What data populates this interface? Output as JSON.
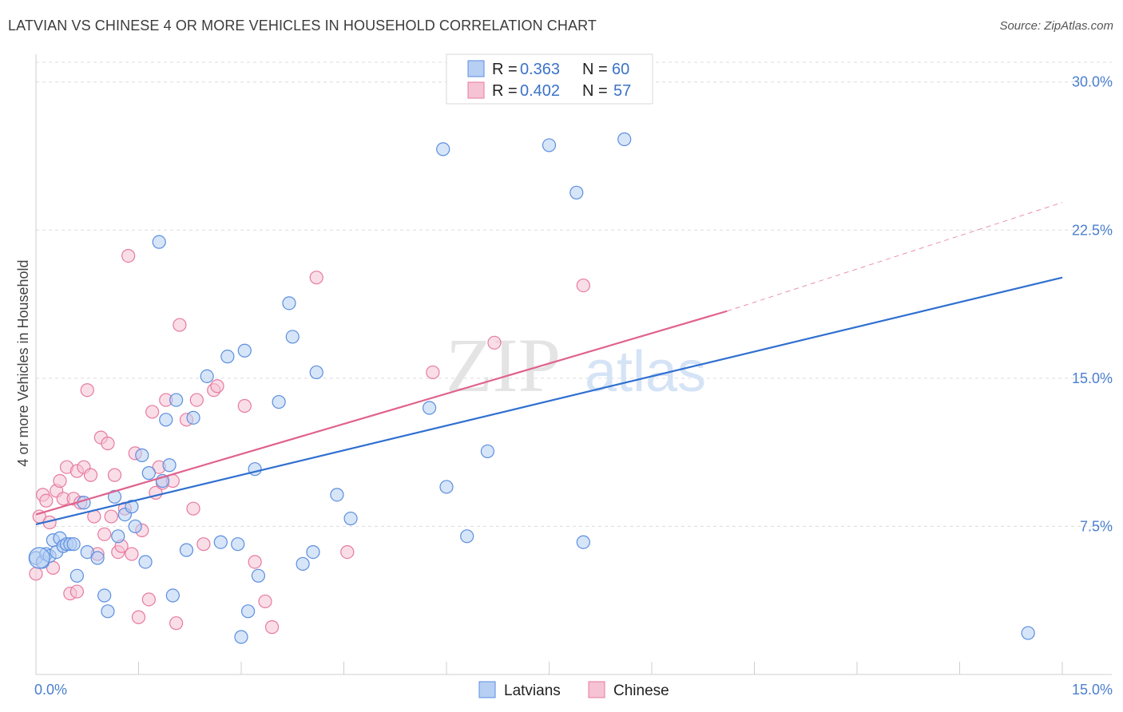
{
  "title": "LATVIAN VS CHINESE 4 OR MORE VEHICLES IN HOUSEHOLD CORRELATION CHART",
  "source": "Source: ZipAtlas.com",
  "watermark": {
    "zip": "ZIP",
    "atlas": "atlas"
  },
  "legend": {
    "r_label": "R =",
    "n_label": "N =",
    "items": [
      {
        "r": "0.363",
        "n": "60"
      },
      {
        "r": "0.402",
        "n": "57"
      }
    ]
  },
  "chart_data": {
    "type": "scatter",
    "title": "LATVIAN VS CHINESE 4 OR MORE VEHICLES IN HOUSEHOLD CORRELATION CHART",
    "xlabel": "",
    "ylabel": "4 or more Vehicles in Household",
    "xlim": [
      0,
      15
    ],
    "ylim": [
      0,
      31
    ],
    "x_tick_labels": [
      "0.0%",
      "15.0%"
    ],
    "y_ticks": [
      7.5,
      15.0,
      22.5,
      30.0
    ],
    "y_tick_labels": [
      "7.5%",
      "15.0%",
      "22.5%",
      "30.0%"
    ],
    "grid": true,
    "legend_position": "top-center",
    "colors": {
      "Latvians": "#5b8ee0",
      "Latvians_fill": "#b7cff3",
      "Chinese": "#e77aa0",
      "Chinese_fill": "#f6c3d4",
      "Latvians_line": "#2f6fd0",
      "Chinese_line": "#e0628e",
      "tick_text": "#4a7fcf"
    },
    "series": [
      {
        "name": "Latvians",
        "trend": {
          "x0": 0,
          "y0": 7.6,
          "x1": 15,
          "y1": 20.1
        },
        "points": [
          [
            0.0,
            5.9
          ],
          [
            0.1,
            5.7
          ],
          [
            0.15,
            6.1
          ],
          [
            0.2,
            6.0
          ],
          [
            0.25,
            6.8
          ],
          [
            0.3,
            6.2
          ],
          [
            0.35,
            6.9
          ],
          [
            0.4,
            6.5
          ],
          [
            0.45,
            6.6
          ],
          [
            0.5,
            6.6
          ],
          [
            0.55,
            6.6
          ],
          [
            0.6,
            5.0
          ],
          [
            0.7,
            8.7
          ],
          [
            0.75,
            6.2
          ],
          [
            0.9,
            5.9
          ],
          [
            1.0,
            4.0
          ],
          [
            1.05,
            3.2
          ],
          [
            1.15,
            9.0
          ],
          [
            1.2,
            7.0
          ],
          [
            1.3,
            8.1
          ],
          [
            1.4,
            8.5
          ],
          [
            1.45,
            7.5
          ],
          [
            1.55,
            11.1
          ],
          [
            1.6,
            5.7
          ],
          [
            1.65,
            10.2
          ],
          [
            1.8,
            21.9
          ],
          [
            1.85,
            9.8
          ],
          [
            1.95,
            10.6
          ],
          [
            1.9,
            12.9
          ],
          [
            2.0,
            4.0
          ],
          [
            2.05,
            13.9
          ],
          [
            2.2,
            6.3
          ],
          [
            2.3,
            13.0
          ],
          [
            2.5,
            15.1
          ],
          [
            2.7,
            6.7
          ],
          [
            2.8,
            16.1
          ],
          [
            2.95,
            6.6
          ],
          [
            3.05,
            16.4
          ],
          [
            3.1,
            3.2
          ],
          [
            3.0,
            1.9
          ],
          [
            3.2,
            10.4
          ],
          [
            3.25,
            5.0
          ],
          [
            3.55,
            13.8
          ],
          [
            3.7,
            18.8
          ],
          [
            3.75,
            17.1
          ],
          [
            3.9,
            5.6
          ],
          [
            4.05,
            6.2
          ],
          [
            4.1,
            15.3
          ],
          [
            4.4,
            9.1
          ],
          [
            4.6,
            7.9
          ],
          [
            5.75,
            13.5
          ],
          [
            5.95,
            26.6
          ],
          [
            6.0,
            9.5
          ],
          [
            6.3,
            7.0
          ],
          [
            6.6,
            11.3
          ],
          [
            7.5,
            26.8
          ],
          [
            7.9,
            24.4
          ],
          [
            8.0,
            6.7
          ],
          [
            8.6,
            27.1
          ],
          [
            14.5,
            2.1
          ]
        ]
      },
      {
        "name": "Chinese",
        "trend": {
          "x0": 0,
          "y0": 8.1,
          "x1": 10.1,
          "y1": 18.4,
          "dashed_to_x": 15,
          "dashed_to_y": 23.9
        },
        "points": [
          [
            0.0,
            5.1
          ],
          [
            0.05,
            8.0
          ],
          [
            0.1,
            9.1
          ],
          [
            0.15,
            8.8
          ],
          [
            0.2,
            7.7
          ],
          [
            0.25,
            5.4
          ],
          [
            0.3,
            9.3
          ],
          [
            0.35,
            9.8
          ],
          [
            0.4,
            8.9
          ],
          [
            0.45,
            10.5
          ],
          [
            0.5,
            4.1
          ],
          [
            0.55,
            8.9
          ],
          [
            0.6,
            10.3
          ],
          [
            0.65,
            8.7
          ],
          [
            0.7,
            10.5
          ],
          [
            0.75,
            14.4
          ],
          [
            0.8,
            10.1
          ],
          [
            0.85,
            8.0
          ],
          [
            0.9,
            6.1
          ],
          [
            0.95,
            12.0
          ],
          [
            1.0,
            7.1
          ],
          [
            1.05,
            11.7
          ],
          [
            1.1,
            8.0
          ],
          [
            1.15,
            10.1
          ],
          [
            1.2,
            6.2
          ],
          [
            1.3,
            8.4
          ],
          [
            1.35,
            21.2
          ],
          [
            1.4,
            6.1
          ],
          [
            1.45,
            11.2
          ],
          [
            1.5,
            2.9
          ],
          [
            1.55,
            7.3
          ],
          [
            1.65,
            3.8
          ],
          [
            1.7,
            13.3
          ],
          [
            1.75,
            9.2
          ],
          [
            1.8,
            10.5
          ],
          [
            1.85,
            9.7
          ],
          [
            1.9,
            13.9
          ],
          [
            2.0,
            9.8
          ],
          [
            2.05,
            2.6
          ],
          [
            2.1,
            17.7
          ],
          [
            2.2,
            12.9
          ],
          [
            2.3,
            8.4
          ],
          [
            2.35,
            13.9
          ],
          [
            2.45,
            6.6
          ],
          [
            2.6,
            14.4
          ],
          [
            2.65,
            14.6
          ],
          [
            3.05,
            13.6
          ],
          [
            3.2,
            5.7
          ],
          [
            3.35,
            3.7
          ],
          [
            3.45,
            2.4
          ],
          [
            4.1,
            20.1
          ],
          [
            4.55,
            6.2
          ],
          [
            5.8,
            15.3
          ],
          [
            6.7,
            16.8
          ],
          [
            8.0,
            19.7
          ],
          [
            0.6,
            4.2
          ],
          [
            1.25,
            6.5
          ]
        ]
      }
    ]
  },
  "bottom_legend": [
    "Latvians",
    "Chinese"
  ]
}
